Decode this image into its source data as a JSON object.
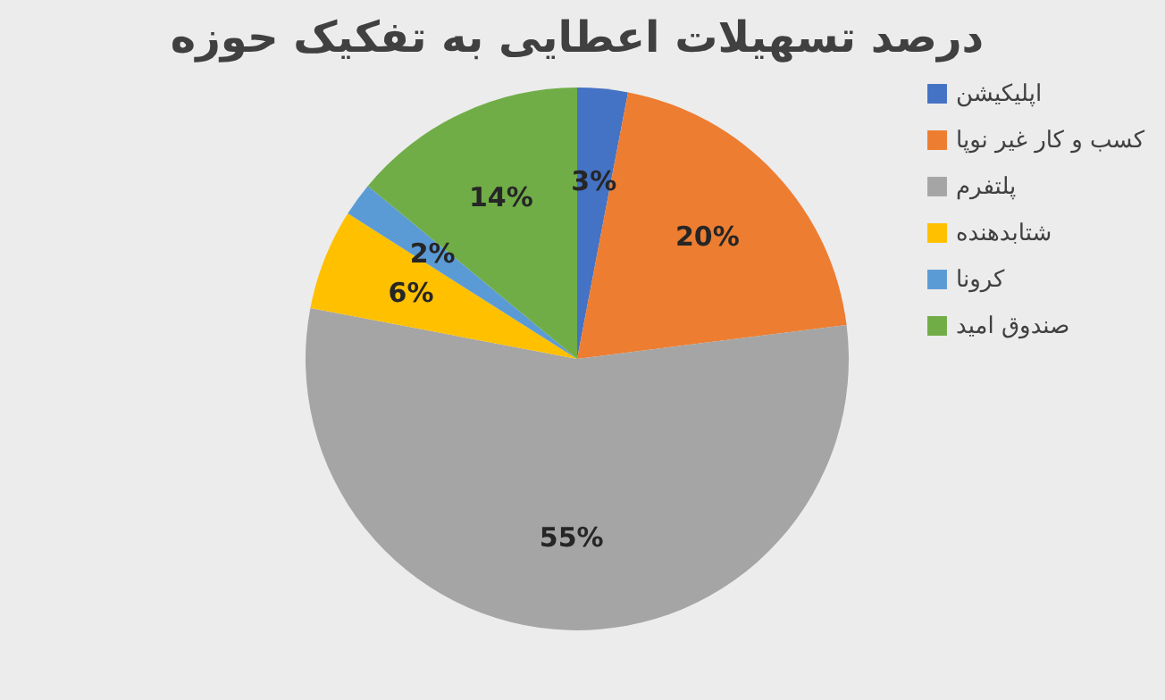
{
  "chart_data": {
    "type": "pie",
    "title": "درصد تسهیلات اعطایی به تفکیک حوزه",
    "categories": [
      "اپلیکیشن",
      "کسب و کار غیر نوپا",
      "پلتفرم",
      "شتابدهنده",
      "کرونا",
      "صندوق امید"
    ],
    "values": [
      3,
      20,
      55,
      6,
      2,
      14
    ],
    "colors": [
      "#4472c4",
      "#ed7d31",
      "#a5a5a5",
      "#ffc000",
      "#5b9bd5",
      "#70ad47"
    ],
    "value_labels": [
      "3%",
      "20%",
      "55%",
      "6%",
      "2%",
      "14%"
    ],
    "legend": "right"
  }
}
